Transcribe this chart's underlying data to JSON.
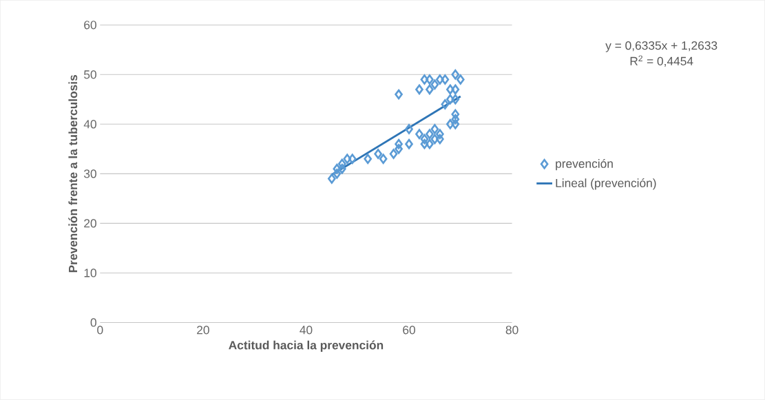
{
  "chart_data": {
    "type": "scatter",
    "xlabel": "Actitud hacia la prevención",
    "ylabel": "Prevención frente a la tuberculosis",
    "series": [
      {
        "name": "prevención",
        "color": "#5b9bd5",
        "marker": "diamond",
        "x": [
          45,
          46,
          46,
          47,
          47,
          48,
          49,
          52,
          54,
          55,
          57,
          58,
          58,
          60,
          60,
          62,
          63,
          63,
          64,
          64,
          65,
          65,
          66,
          66,
          68,
          69,
          69,
          69,
          58,
          62,
          63,
          64,
          64,
          65,
          66,
          67,
          68,
          69,
          70,
          69,
          67,
          69,
          68
        ],
        "values": [
          29,
          31,
          30,
          32,
          31,
          33,
          33,
          33,
          34,
          33,
          34,
          35,
          36,
          36,
          39,
          38,
          37,
          36,
          38,
          36,
          37,
          39,
          37,
          38,
          40,
          41,
          42,
          40,
          46,
          47,
          49,
          47,
          49,
          48,
          49,
          49,
          47,
          50,
          49,
          47,
          44,
          45,
          45
        ]
      },
      {
        "name": "Lineal (prevención)",
        "type": "line",
        "color": "#2e75b6",
        "marker": "none",
        "x": [
          45,
          70
        ],
        "values": [
          29.8,
          45.6
        ]
      }
    ],
    "xlim": [
      0,
      80
    ],
    "xticks": [
      0,
      20,
      40,
      60,
      80
    ],
    "ylim": [
      0,
      60
    ],
    "yticks": [
      0,
      10,
      20,
      30,
      40,
      50,
      60
    ],
    "grid": "y",
    "legend": "right",
    "annotations": [
      "y = 0,6335x + 1,2633",
      "R$^{2}$ = 0,4454"
    ]
  }
}
